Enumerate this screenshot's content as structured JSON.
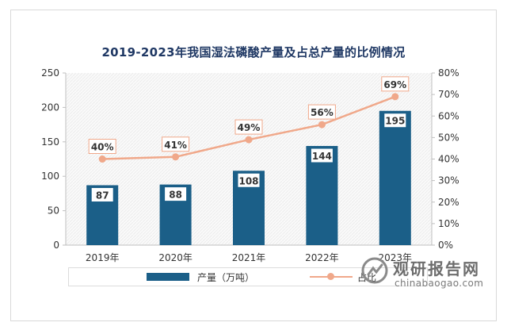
{
  "chart_data": {
    "type": "bar+line",
    "title": "2019-2023年我国湿法磷酸产量及占总产量的比例情况",
    "categories": [
      "2019年",
      "2020年",
      "2021年",
      "2022年",
      "2023年"
    ],
    "series": [
      {
        "name": "产量（万吨）",
        "type": "bar",
        "axis": "left",
        "values": [
          87,
          88,
          108,
          144,
          195
        ],
        "labels": [
          "87",
          "88",
          "108",
          "144",
          "195"
        ],
        "color": "#1b5f88"
      },
      {
        "name": "占比",
        "type": "line",
        "axis": "right",
        "values": [
          40,
          41,
          49,
          56,
          69
        ],
        "labels": [
          "40%",
          "41%",
          "49%",
          "56%",
          "69%"
        ],
        "color": "#f0a88a"
      }
    ],
    "left_axis": {
      "ylim": [
        0,
        250
      ],
      "ticks": [
        "0",
        "50",
        "100",
        "150",
        "200",
        "250"
      ]
    },
    "right_axis": {
      "ylim": [
        0,
        80
      ],
      "ticks": [
        "0%",
        "10%",
        "20%",
        "30%",
        "40%",
        "50%",
        "60%",
        "70%",
        "80%"
      ]
    },
    "grid": false,
    "legend_position": "bottom"
  },
  "watermark": {
    "brand": "观研报告网",
    "url": "chinabaogao.com"
  }
}
